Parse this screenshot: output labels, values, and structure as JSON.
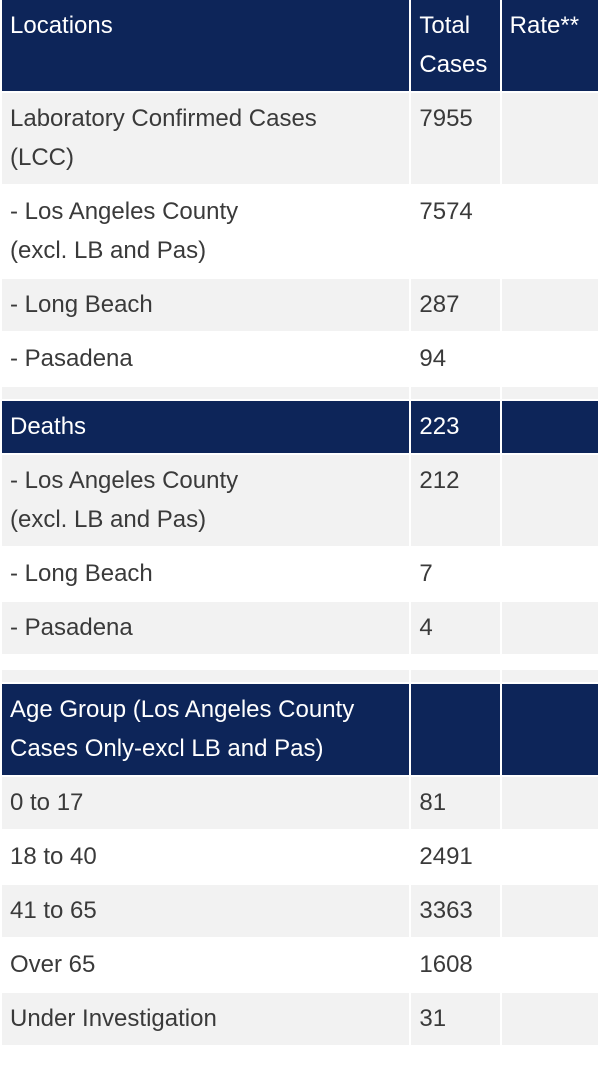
{
  "header": {
    "col_locations": "Locations",
    "col_total_cases": "Total\nCases",
    "col_rate": "Rate**"
  },
  "cases": [
    {
      "label": "Laboratory Confirmed Cases\n(LCC)",
      "total": "7955",
      "rate": ""
    },
    {
      "label": "- Los Angeles County\n(excl. LB and Pas)",
      "total": "7574",
      "rate": ""
    },
    {
      "label": "- Long Beach",
      "total": "287",
      "rate": ""
    },
    {
      "label": "- Pasadena",
      "total": "94",
      "rate": ""
    }
  ],
  "deaths_header": {
    "label": "Deaths",
    "total": "223",
    "rate": ""
  },
  "deaths": [
    {
      "label": "- Los Angeles County\n(excl. LB and Pas)",
      "total": "212",
      "rate": ""
    },
    {
      "label": "- Long Beach",
      "total": "7",
      "rate": ""
    },
    {
      "label": "- Pasadena",
      "total": "4",
      "rate": ""
    }
  ],
  "age_header": {
    "label": "Age Group (Los Angeles County\nCases Only-excl LB and Pas)",
    "total": "",
    "rate": ""
  },
  "age_groups": [
    {
      "label": "0 to 17",
      "total": "81",
      "rate": ""
    },
    {
      "label": "18 to 40",
      "total": "2491",
      "rate": ""
    },
    {
      "label": "41 to 65",
      "total": "3363",
      "rate": ""
    },
    {
      "label": "Over 65",
      "total": "1608",
      "rate": ""
    },
    {
      "label": "Under Investigation",
      "total": "31",
      "rate": ""
    }
  ]
}
